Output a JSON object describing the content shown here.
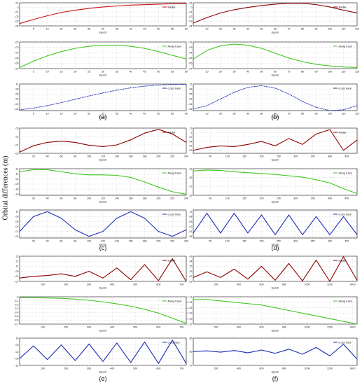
{
  "figure": {
    "ylabel": "Orbital differences (m)",
    "colors": {
      "radial": "#8b0000",
      "along": "#3ec81e",
      "cross": "#1a2bb5",
      "radial_first": "#cc1111"
    }
  },
  "chart_data": [
    {
      "panel": "(a)",
      "type": "line",
      "xlabel": "Epoch",
      "xlim": [
        0,
        60
      ],
      "xticks": [
        5,
        10,
        15,
        20,
        25,
        30,
        35,
        40,
        45,
        50,
        55,
        60
      ],
      "series": [
        {
          "name": "Radial",
          "style": "line",
          "ylim": [
            -0.04,
            0.01
          ],
          "yticks": [
            0.01,
            0,
            -0.01,
            -0.02,
            -0.03,
            -0.04
          ],
          "x": [
            0,
            5,
            10,
            15,
            20,
            25,
            30,
            35,
            40,
            45,
            50,
            55,
            60
          ],
          "values": [
            -0.035,
            -0.026,
            -0.018,
            -0.011,
            -0.006,
            -0.002,
            0.001,
            0.003,
            0.005,
            0.006,
            0.007,
            0.008,
            0.008
          ]
        },
        {
          "name": "Along track",
          "style": "line",
          "ylim": [
            -0.07,
            -0.02
          ],
          "yticks": [
            -0.02,
            -0.03,
            -0.04,
            -0.05,
            -0.06,
            -0.07
          ],
          "x": [
            0,
            5,
            10,
            15,
            20,
            25,
            30,
            35,
            40,
            45,
            50,
            55,
            60
          ],
          "values": [
            -0.068,
            -0.056,
            -0.046,
            -0.038,
            -0.032,
            -0.028,
            -0.026,
            -0.026,
            -0.028,
            -0.032,
            -0.038,
            -0.045,
            -0.052
          ]
        },
        {
          "name": "cross track",
          "style": "dotted",
          "ylim": [
            -0.05,
            0.11
          ],
          "yticks": [
            0.11,
            0.08,
            0.05,
            0.02,
            -0.01,
            -0.04
          ],
          "x": [
            0,
            5,
            10,
            15,
            20,
            25,
            30,
            35,
            40,
            45,
            50,
            55,
            60
          ],
          "values": [
            -0.045,
            -0.035,
            -0.02,
            -0.002,
            0.018,
            0.038,
            0.056,
            0.073,
            0.087,
            0.097,
            0.104,
            0.107,
            0.108
          ]
        }
      ]
    },
    {
      "panel": "(b)",
      "type": "line",
      "xlabel": "Epoch",
      "xlim": [
        0,
        120
      ],
      "xticks": [
        10,
        20,
        30,
        40,
        50,
        60,
        70,
        80,
        90,
        100,
        110,
        120
      ],
      "series": [
        {
          "name": "Radial",
          "style": "line",
          "ylim": [
            -0.04,
            0.01
          ],
          "yticks": [
            0.01,
            0,
            -0.01,
            -0.02,
            -0.03,
            -0.04
          ],
          "x": [
            0,
            10,
            20,
            30,
            40,
            50,
            60,
            70,
            80,
            90,
            100,
            110,
            120
          ],
          "values": [
            -0.034,
            -0.022,
            -0.012,
            -0.005,
            0.0,
            0.004,
            0.007,
            0.009,
            0.009,
            0.006,
            0.001,
            -0.006,
            -0.012
          ]
        },
        {
          "name": "Along track",
          "style": "line",
          "ylim": [
            -0.07,
            -0.02
          ],
          "yticks": [
            -0.02,
            -0.03,
            -0.04,
            -0.05,
            -0.06,
            -0.07
          ],
          "x": [
            0,
            10,
            20,
            30,
            40,
            50,
            60,
            70,
            80,
            90,
            100,
            110,
            120
          ],
          "values": [
            -0.052,
            -0.036,
            -0.027,
            -0.024,
            -0.026,
            -0.032,
            -0.041,
            -0.05,
            -0.057,
            -0.062,
            -0.065,
            -0.067,
            -0.068
          ]
        },
        {
          "name": "cross track",
          "style": "dotted",
          "ylim": [
            -0.05,
            0.11
          ],
          "yticks": [
            0.11,
            0.08,
            0.05,
            0.02,
            -0.01,
            -0.04
          ],
          "x": [
            0,
            10,
            20,
            30,
            40,
            50,
            60,
            70,
            80,
            90,
            100,
            110,
            120
          ],
          "values": [
            -0.04,
            -0.02,
            0.02,
            0.06,
            0.09,
            0.1,
            0.085,
            0.05,
            0.005,
            -0.03,
            -0.05,
            -0.045,
            -0.02
          ]
        }
      ]
    },
    {
      "panel": "(c)",
      "type": "line",
      "xlabel": "Epoch",
      "xlim": [
        0,
        240
      ],
      "xticks": [
        20,
        40,
        60,
        80,
        100,
        120,
        140,
        160,
        180,
        200,
        220,
        240
      ],
      "series": [
        {
          "name": "Radial",
          "style": "line",
          "ylim": [
            -0.03,
            0.03
          ],
          "yticks": [
            0.03,
            0.01,
            -0.01,
            -0.03
          ],
          "x": [
            0,
            20,
            40,
            60,
            80,
            100,
            120,
            140,
            160,
            180,
            200,
            220,
            240
          ],
          "values": [
            -0.027,
            -0.012,
            -0.004,
            -0.001,
            -0.004,
            -0.011,
            -0.014,
            -0.01,
            0.002,
            0.018,
            0.027,
            0.016,
            -0.004
          ]
        },
        {
          "name": "Along track",
          "style": "line",
          "ylim": [
            -0.31,
            0.21
          ],
          "yticks": [
            0.21,
            0.11,
            0.01,
            -0.09,
            -0.19,
            -0.29
          ],
          "x": [
            0,
            20,
            40,
            60,
            80,
            100,
            120,
            140,
            160,
            180,
            200,
            220,
            240
          ],
          "values": [
            0.15,
            0.19,
            0.19,
            0.15,
            0.11,
            0.09,
            0.09,
            0.08,
            0.04,
            -0.05,
            -0.15,
            -0.24,
            -0.29
          ]
        },
        {
          "name": "cross track",
          "style": "line",
          "ylim": [
            -0.05,
            0.12
          ],
          "yticks": [
            0.11,
            0.08,
            0.05,
            0.02,
            -0.01,
            -0.04
          ],
          "x": [
            0,
            20,
            40,
            60,
            80,
            100,
            120,
            140,
            160,
            180,
            200,
            220,
            240
          ],
          "values": [
            -0.01,
            0.08,
            0.11,
            0.07,
            0.0,
            -0.04,
            -0.01,
            0.07,
            0.11,
            0.07,
            -0.01,
            -0.04,
            0.0
          ]
        }
      ]
    },
    {
      "panel": "(d)",
      "type": "line",
      "xlabel": "Epoch",
      "xlim": [
        0,
        480
      ],
      "xticks": [
        50,
        100,
        150,
        200,
        250,
        300,
        350,
        400,
        450
      ],
      "series": [
        {
          "name": "Radial",
          "style": "line",
          "ylim": [
            -0.04,
            0.13
          ],
          "yticks": [
            0.13,
            0.1,
            0.07,
            0.04,
            0.01,
            -0.02
          ],
          "x": [
            0,
            40,
            80,
            120,
            160,
            200,
            240,
            280,
            320,
            360,
            400,
            440,
            480
          ],
          "values": [
            -0.02,
            0.0,
            0.01,
            0.005,
            0.02,
            0.04,
            0.01,
            0.06,
            0.02,
            0.09,
            0.12,
            -0.02,
            0.05
          ]
        },
        {
          "name": "Along track",
          "style": "line",
          "ylim": [
            -0.39,
            -0.33
          ],
          "yticks": [
            -0.33,
            -0.35,
            -0.37,
            -0.39
          ],
          "x": [
            0,
            40,
            80,
            120,
            160,
            200,
            240,
            280,
            320,
            360,
            400,
            440,
            480
          ],
          "values": [
            -0.335,
            -0.333,
            -0.334,
            -0.337,
            -0.339,
            -0.341,
            -0.343,
            -0.346,
            -0.349,
            -0.355,
            -0.362,
            -0.375,
            -0.386
          ]
        },
        {
          "name": "cross track",
          "style": "line",
          "ylim": [
            -0.05,
            0.12
          ],
          "yticks": [
            0.11,
            0.08,
            0.05,
            0.02,
            -0.01,
            -0.04
          ],
          "x": [
            0,
            40,
            80,
            120,
            160,
            200,
            240,
            280,
            320,
            360,
            400,
            440,
            480
          ],
          "values": [
            -0.02,
            0.1,
            -0.02,
            0.1,
            -0.02,
            0.09,
            -0.03,
            0.09,
            -0.03,
            0.08,
            -0.03,
            0.08,
            -0.03
          ]
        }
      ]
    },
    {
      "panel": "(e)",
      "type": "line",
      "xlabel": "Epoch",
      "xlim": [
        0,
        720
      ],
      "xticks": [
        100,
        200,
        300,
        400,
        500,
        600,
        700
      ],
      "series": [
        {
          "name": "Radial",
          "style": "line",
          "ylim": [
            -0.07,
            0.23
          ],
          "yticks": [
            0.23,
            0.17,
            0.11,
            0.05,
            -0.01,
            -0.07
          ],
          "x": [
            0,
            60,
            120,
            180,
            240,
            300,
            360,
            420,
            480,
            540,
            600,
            660,
            720
          ],
          "values": [
            -0.03,
            -0.01,
            0.0,
            0.02,
            -0.01,
            0.05,
            -0.03,
            0.09,
            -0.05,
            0.13,
            -0.06,
            0.2,
            -0.07
          ]
        },
        {
          "name": "Along track",
          "style": "line",
          "ylim": [
            -3.7,
            -3.0
          ],
          "yticks": [
            -3.0,
            -3.1,
            -3.2,
            -3.3,
            -3.4,
            -3.5,
            -3.6,
            -3.7
          ],
          "x": [
            0,
            60,
            120,
            180,
            240,
            300,
            360,
            420,
            480,
            540,
            600,
            660,
            720
          ],
          "values": [
            -3.02,
            -3.02,
            -3.03,
            -3.04,
            -3.06,
            -3.09,
            -3.13,
            -3.18,
            -3.24,
            -3.32,
            -3.42,
            -3.55,
            -3.68
          ]
        },
        {
          "name": "crosstrack",
          "style": "line",
          "ylim": [
            -0.12,
            0.16
          ],
          "yticks": [
            0.16,
            0.09,
            0.02,
            -0.05,
            -0.12
          ],
          "x": [
            0,
            60,
            120,
            180,
            240,
            300,
            360,
            420,
            480,
            540,
            600,
            660,
            720
          ],
          "values": [
            -0.05,
            0.08,
            -0.06,
            0.09,
            -0.07,
            0.1,
            -0.08,
            0.11,
            -0.09,
            0.12,
            -0.1,
            0.14,
            -0.1
          ]
        }
      ]
    },
    {
      "panel": "(f)",
      "type": "line",
      "xlabel": "Epoch",
      "xlim": [
        0,
        1440
      ],
      "xticks": [
        200,
        400,
        600,
        800,
        1000,
        1200,
        1400
      ],
      "series": [
        {
          "name": "Radial",
          "style": "line",
          "ylim": [
            -0.02,
            0.43
          ],
          "yticks": [
            0.43,
            0.34,
            0.25,
            0.16,
            0.07,
            -0.02
          ],
          "x": [
            0,
            120,
            240,
            360,
            480,
            600,
            720,
            840,
            960,
            1080,
            1200,
            1320,
            1440
          ],
          "values": [
            0.05,
            0.15,
            0.05,
            0.2,
            0.02,
            0.25,
            0.0,
            0.3,
            -0.01,
            0.36,
            -0.02,
            0.42,
            0.0
          ]
        },
        {
          "name": "Along track",
          "style": "line",
          "ylim": [
            -1.37,
            -1.17
          ],
          "yticks": [
            -1.17,
            -1.21,
            -1.25,
            -1.29,
            -1.33,
            -1.37
          ],
          "x": [
            0,
            120,
            240,
            360,
            480,
            600,
            720,
            840,
            960,
            1080,
            1200,
            1320,
            1440
          ],
          "values": [
            -1.19,
            -1.19,
            -1.2,
            -1.21,
            -1.22,
            -1.23,
            -1.25,
            -1.27,
            -1.29,
            -1.31,
            -1.33,
            -1.35,
            -1.37
          ]
        },
        {
          "name": "cross track",
          "style": "line",
          "ylim": [
            -0.77,
            0.86
          ],
          "yticks": [
            0.86,
            0.06,
            -0.77
          ],
          "x": [
            0,
            120,
            240,
            360,
            480,
            600,
            720,
            840,
            960,
            1080,
            1200,
            1320,
            1440
          ],
          "values": [
            0.06,
            0.1,
            0.02,
            0.12,
            -0.02,
            0.15,
            -0.05,
            0.2,
            -0.1,
            0.3,
            -0.2,
            0.5,
            -0.4
          ]
        }
      ]
    }
  ]
}
